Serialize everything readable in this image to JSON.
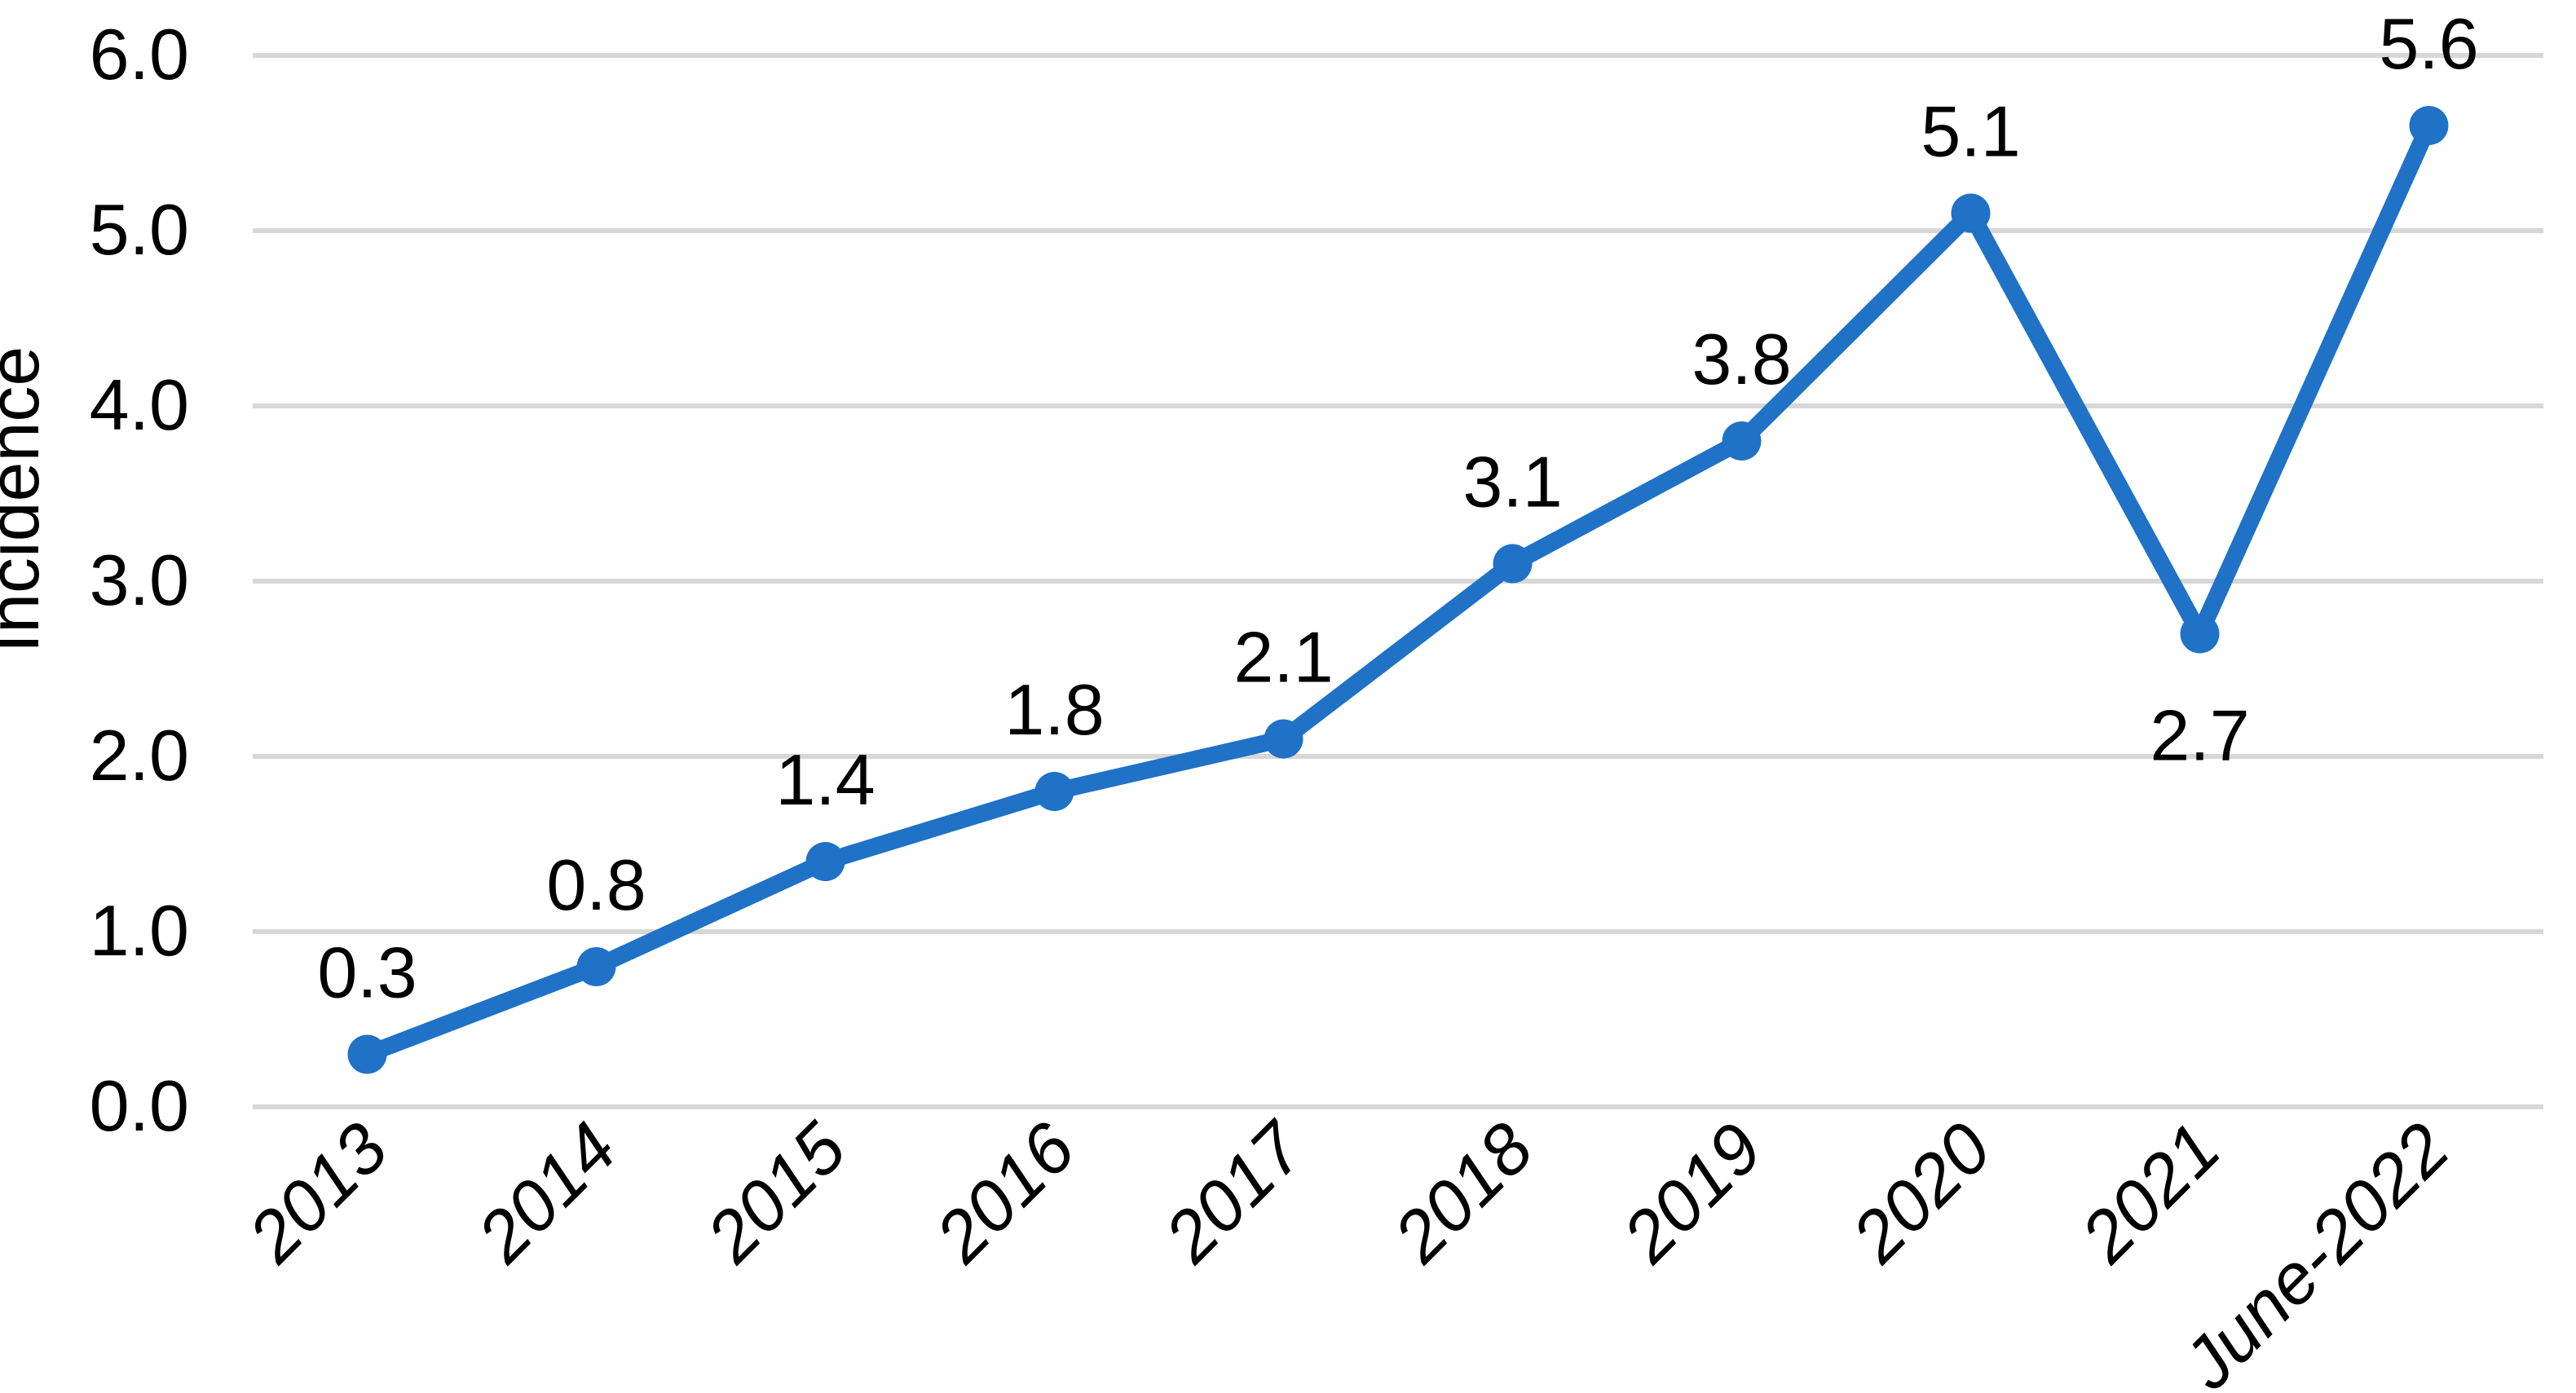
{
  "chart_data": {
    "type": "line",
    "title": "",
    "xlabel": "",
    "ylabel": "Incidence",
    "categories": [
      "2013",
      "2014",
      "2015",
      "2016",
      "2017",
      "2018",
      "2019",
      "2020",
      "2021",
      "June-2022"
    ],
    "series": [
      {
        "name": "Incidence",
        "values": [
          0.3,
          0.8,
          1.4,
          1.8,
          2.1,
          3.1,
          3.8,
          5.1,
          2.7,
          5.6
        ]
      }
    ],
    "data_labels": [
      "0.3",
      "0.8",
      "1.4",
      "1.8",
      "2.1",
      "3.1",
      "3.8",
      "5.1",
      "2.7",
      "5.6"
    ],
    "data_label_positions": [
      "above",
      "above",
      "above",
      "above",
      "above",
      "above",
      "above",
      "above",
      "below",
      "above"
    ],
    "y_ticks": [
      "0.0",
      "1.0",
      "2.0",
      "3.0",
      "4.0",
      "5.0",
      "6.0"
    ],
    "ylim": [
      0,
      6
    ],
    "grid": "horizontal",
    "legend": "none",
    "x_tick_rotation": -45,
    "x_tick_style": "italic",
    "colors": {
      "line": "#1F72C6",
      "marker": "#1F72C6",
      "gridline": "#D7D7D7",
      "text": "#000000",
      "background": "#FFFFFF"
    }
  }
}
